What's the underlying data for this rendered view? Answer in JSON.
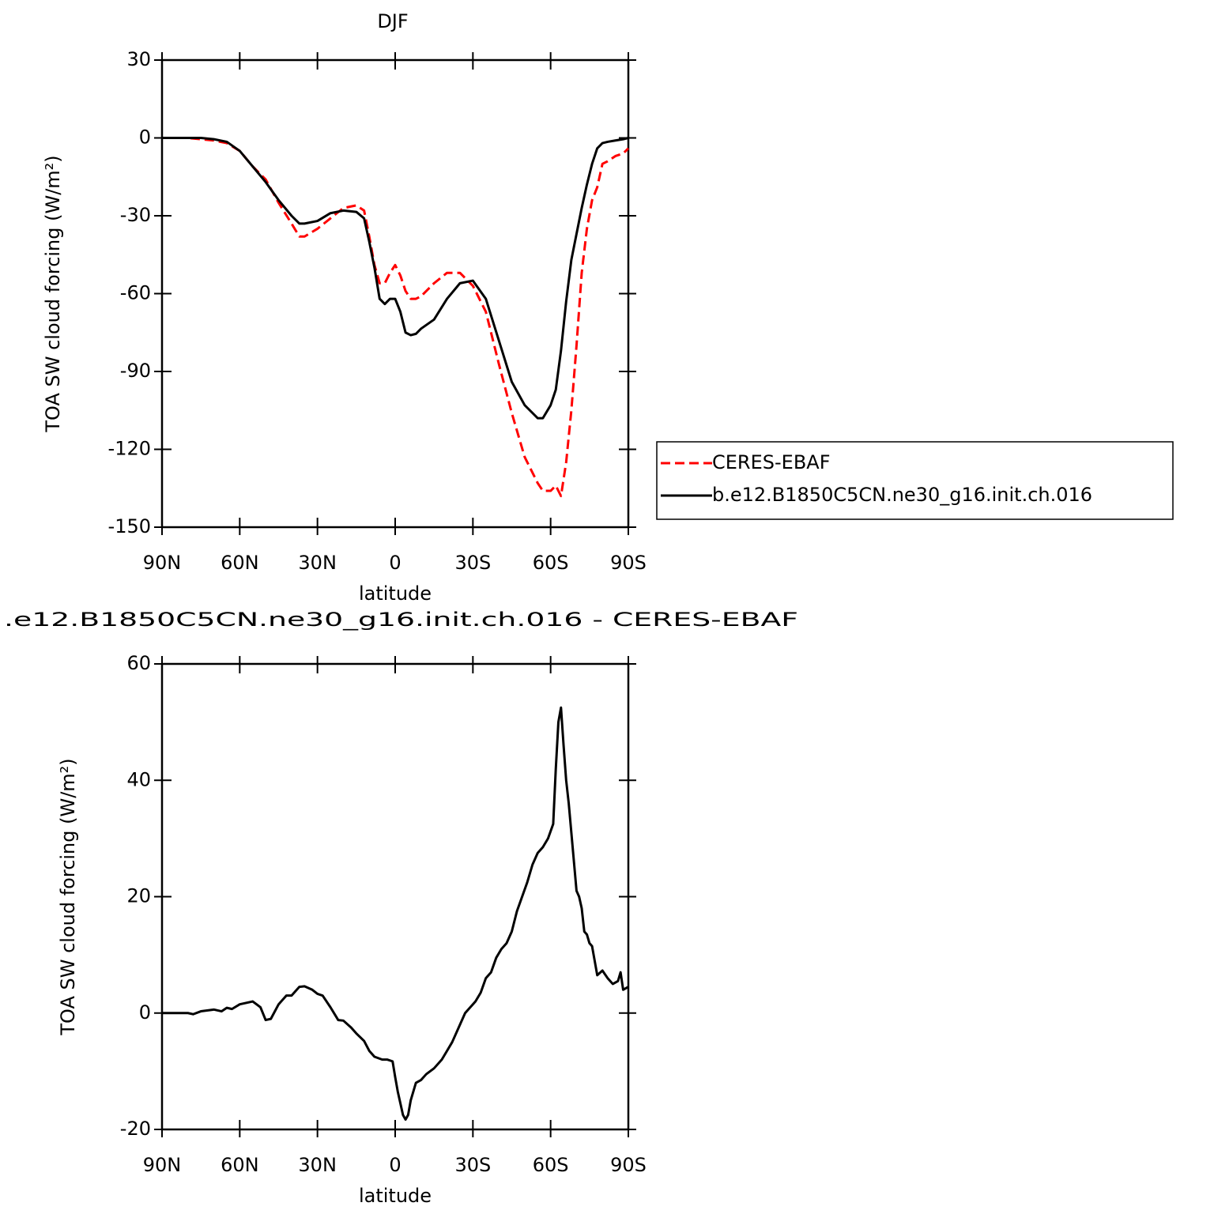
{
  "chart_data": [
    {
      "type": "line",
      "title": "DJF",
      "x_label": "latitude",
      "y_label": "TOA SW cloud forcing (W/m²)",
      "x": [
        90,
        85,
        80,
        75,
        70,
        65,
        60,
        55,
        50,
        45,
        40,
        37,
        35,
        30,
        25,
        20,
        15,
        12,
        10,
        8,
        6,
        4,
        2,
        0,
        -2,
        -4,
        -6,
        -8,
        -10,
        -15,
        -20,
        -25,
        -30,
        -35,
        -40,
        -45,
        -50,
        -55,
        -57,
        -60,
        -62,
        -64,
        -66,
        -68,
        -70,
        -72,
        -74,
        -76,
        -78,
        -80,
        -82,
        -85,
        -88,
        -90
      ],
      "series": [
        {
          "name": "CERES-EBAF",
          "color": "#ff0000",
          "dash": "dashed",
          "values": [
            0,
            0,
            0,
            -0.5,
            -1,
            -2,
            -5,
            -11,
            -16,
            -25,
            -33,
            -38,
            -38,
            -35,
            -31,
            -27,
            -26,
            -28,
            -38,
            -49,
            -56,
            -56,
            -52,
            -49,
            -53,
            -59,
            -62,
            -62,
            -61,
            -56,
            -52,
            -52,
            -57,
            -67,
            -87,
            -106,
            -123,
            -133,
            -136,
            -136,
            -134,
            -138,
            -125,
            -105,
            -80,
            -52,
            -35,
            -24,
            -19,
            -10,
            -9,
            -7,
            -6,
            -4
          ]
        },
        {
          "name": "b.e12.B1850C5CN.ne30_g16.init.ch.016",
          "color": "#000000",
          "dash": "solid",
          "values": [
            0,
            0,
            0,
            0,
            -0.5,
            -1.5,
            -5,
            -11,
            -17,
            -24,
            -30,
            -33,
            -33,
            -32,
            -29,
            -28,
            -28.5,
            -31,
            -40,
            -50,
            -62,
            -64,
            -62,
            -62,
            -67,
            -75,
            -76,
            -75.5,
            -73.5,
            -70,
            -62,
            -56,
            -55,
            -62,
            -78,
            -94,
            -103,
            -108,
            -108,
            -103,
            -97,
            -82,
            -63,
            -47,
            -37,
            -27,
            -18,
            -10,
            -4,
            -2,
            -1.5,
            -1,
            -0.5,
            0
          ]
        }
      ],
      "xlim": [
        90,
        -90
      ],
      "xticks": [
        {
          "value": 90,
          "label": "90N"
        },
        {
          "value": 60,
          "label": "60N"
        },
        {
          "value": 30,
          "label": "30N"
        },
        0,
        {
          "value": -30,
          "label": "30S"
        },
        {
          "value": -60,
          "label": "60S"
        },
        {
          "value": -90,
          "label": "90S"
        }
      ],
      "ylim": [
        -150,
        30
      ],
      "yticks": [
        -150,
        -120,
        -90,
        -60,
        -30,
        0,
        30
      ],
      "legend": "right"
    },
    {
      "type": "line",
      "title": ".e12.B1850C5CN.ne30_g16.init.ch.016 - CERES-EBAF",
      "x_label": "latitude",
      "y_label": "TOA SW cloud forcing (W/m²)",
      "x": [
        90,
        80,
        78,
        75,
        70,
        67,
        65,
        63,
        60,
        55,
        52,
        50,
        48,
        45,
        42,
        40,
        37,
        35,
        32,
        30,
        28,
        25,
        22,
        20,
        17,
        15,
        12,
        10,
        8,
        5,
        3,
        1,
        0,
        -1,
        -2,
        -3,
        -4,
        -5,
        -6,
        -8,
        -10,
        -12,
        -15,
        -18,
        -20,
        -22,
        -25,
        -27,
        -29,
        -31,
        -33,
        -35,
        -37,
        -39,
        -41,
        -43,
        -45,
        -47,
        -49,
        -51,
        -53,
        -55,
        -57,
        -59,
        -61,
        -62,
        -63,
        -64,
        -65,
        -66,
        -67,
        -68,
        -70,
        -71,
        -72,
        -73,
        -74,
        -75,
        -76,
        -78,
        -80,
        -82,
        -84,
        -86,
        -87,
        -88,
        -90
      ],
      "series": [
        {
          "color": "#000000",
          "dash": "solid",
          "values": [
            0,
            0,
            -0.2,
            0.3,
            0.6,
            0.3,
            0.9,
            0.7,
            1.5,
            2,
            1,
            -1.2,
            -1,
            1.5,
            3,
            3,
            4.5,
            4.6,
            4,
            3.3,
            3,
            1,
            -1.2,
            -1.3,
            -2.5,
            -3.5,
            -4.8,
            -6.5,
            -7.5,
            -8,
            -8,
            -8.3,
            -11,
            -13.5,
            -15.5,
            -17.5,
            -18.3,
            -17.5,
            -15,
            -12,
            -11.5,
            -10.5,
            -9.5,
            -8,
            -6.5,
            -5,
            -2,
            0,
            1,
            2,
            3.5,
            6,
            7,
            9.5,
            11,
            12,
            14,
            17.5,
            20,
            22.5,
            25.5,
            27.5,
            28.5,
            30,
            32.5,
            42,
            50,
            52.5,
            46,
            40,
            36,
            31,
            21,
            20,
            18,
            14,
            13.5,
            12,
            11.5,
            6.5,
            7.3,
            6,
            5,
            5.5,
            7,
            4,
            4.5
          ]
        }
      ],
      "xlim": [
        90,
        -90
      ],
      "xticks": [
        {
          "value": 90,
          "label": "90N"
        },
        {
          "value": 60,
          "label": "60N"
        },
        {
          "value": 30,
          "label": "30N"
        },
        0,
        {
          "value": -30,
          "label": "30S"
        },
        {
          "value": -60,
          "label": "60S"
        },
        {
          "value": -90,
          "label": "90S"
        }
      ],
      "ylim": [
        -20,
        60
      ],
      "yticks": [
        -20,
        0,
        20,
        40,
        60
      ]
    }
  ]
}
